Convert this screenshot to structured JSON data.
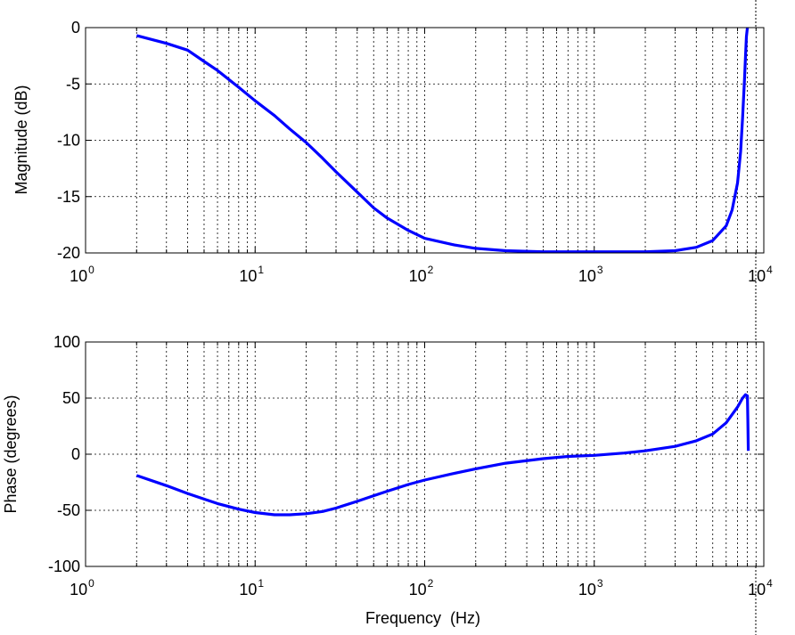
{
  "chart_data": [
    {
      "type": "line",
      "ylabel": "Magnitude (dB)",
      "xlabel": "",
      "xscale": "log",
      "xlim": [
        1,
        10000
      ],
      "ylim": [
        -20,
        0
      ],
      "grid": true,
      "x_tick_labels": [
        {
          "base": "10",
          "exp": "0"
        },
        {
          "base": "10",
          "exp": "1"
        },
        {
          "base": "10",
          "exp": "2"
        },
        {
          "base": "10",
          "exp": "3"
        },
        {
          "base": "10",
          "exp": "4"
        }
      ],
      "y_tick_labels": [
        "0",
        "-5",
        "-10",
        "-15",
        "-20"
      ],
      "series": [
        {
          "color": "#0000ff",
          "x": [
            2,
            3,
            4,
            5,
            6,
            8,
            10,
            13,
            16,
            20,
            25,
            30,
            40,
            50,
            60,
            80,
            100,
            150,
            200,
            300,
            500,
            1000,
            2000,
            3000,
            4000,
            5000,
            6000,
            6500,
            7000,
            7300,
            7500,
            7700,
            7800,
            7900,
            8000
          ],
          "y": [
            -0.7,
            -1.4,
            -2.0,
            -3.0,
            -3.8,
            -5.3,
            -6.5,
            -7.8,
            -9.0,
            -10.2,
            -11.6,
            -12.8,
            -14.6,
            -16.0,
            -16.9,
            -18.0,
            -18.7,
            -19.3,
            -19.6,
            -19.8,
            -19.9,
            -19.9,
            -19.9,
            -19.8,
            -19.5,
            -18.9,
            -17.6,
            -16.2,
            -13.8,
            -11.0,
            -8.0,
            -4.5,
            -2.5,
            -0.8,
            0.0
          ]
        }
      ]
    },
    {
      "type": "line",
      "ylabel": "Phase (degrees)",
      "xlabel": "Frequency  (Hz)",
      "xscale": "log",
      "xlim": [
        1,
        10000
      ],
      "ylim": [
        -100,
        100
      ],
      "grid": true,
      "x_tick_labels": [
        {
          "base": "10",
          "exp": "0"
        },
        {
          "base": "10",
          "exp": "1"
        },
        {
          "base": "10",
          "exp": "2"
        },
        {
          "base": "10",
          "exp": "3"
        },
        {
          "base": "10",
          "exp": "4"
        }
      ],
      "y_tick_labels": [
        "100",
        "50",
        "0",
        "-50",
        "-100"
      ],
      "series": [
        {
          "color": "#0000ff",
          "x": [
            2,
            3,
            4,
            5,
            6,
            8,
            10,
            13,
            16,
            20,
            25,
            30,
            40,
            50,
            60,
            80,
            100,
            150,
            200,
            300,
            500,
            700,
            1000,
            1500,
            2000,
            3000,
            4000,
            5000,
            6000,
            7000,
            7500,
            7800,
            8000,
            8050,
            8100
          ],
          "y": [
            -19,
            -28,
            -35,
            -40,
            -44,
            -49,
            -52,
            -54,
            -54,
            -53,
            -51,
            -48,
            -42,
            -37,
            -33,
            -27,
            -23,
            -17,
            -13,
            -8,
            -4,
            -2,
            -1,
            1,
            3,
            7,
            12,
            18,
            28,
            42,
            50,
            53,
            52,
            30,
            3
          ]
        }
      ]
    }
  ]
}
